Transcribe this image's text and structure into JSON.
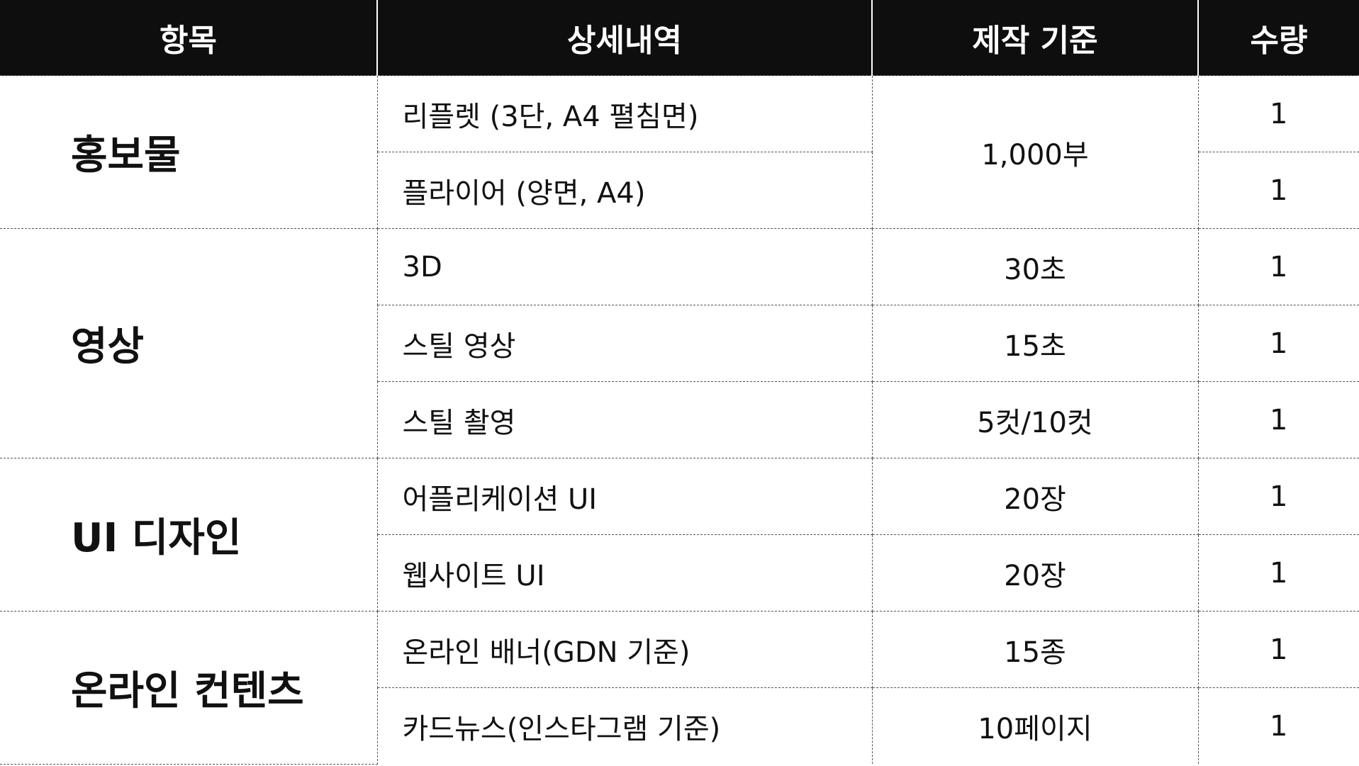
{
  "headers": {
    "category": "항목",
    "detail": "상세내역",
    "standard": "제작 기준",
    "quantity": "수량"
  },
  "groups": [
    {
      "category": "홍보물",
      "rows": [
        {
          "detail": "리플렛 (3단, A4 펼침면)",
          "standard": "1,000부",
          "quantity": "1"
        },
        {
          "detail": "플라이어 (양면, A4)",
          "standard": "",
          "quantity": "1"
        }
      ]
    },
    {
      "category": "영상",
      "rows": [
        {
          "detail": "3D",
          "standard": "30초",
          "quantity": "1"
        },
        {
          "detail": "스틸 영상",
          "standard": "15초",
          "quantity": "1"
        },
        {
          "detail": "스틸 촬영",
          "standard": "5컷/10컷",
          "quantity": "1"
        }
      ]
    },
    {
      "category": "UI 디자인",
      "rows": [
        {
          "detail": "어플리케이션 UI",
          "standard": "20장",
          "quantity": "1"
        },
        {
          "detail": "웹사이트 UI",
          "standard": "20장",
          "quantity": "1"
        }
      ]
    },
    {
      "category": "온라인 컨텐츠",
      "rows": [
        {
          "detail": "온라인 배너(GDN 기준)",
          "standard": "15종",
          "quantity": "1"
        },
        {
          "detail": "카드뉴스(인스타그램 기준)",
          "standard": "10페이지",
          "quantity": "1"
        }
      ]
    }
  ]
}
